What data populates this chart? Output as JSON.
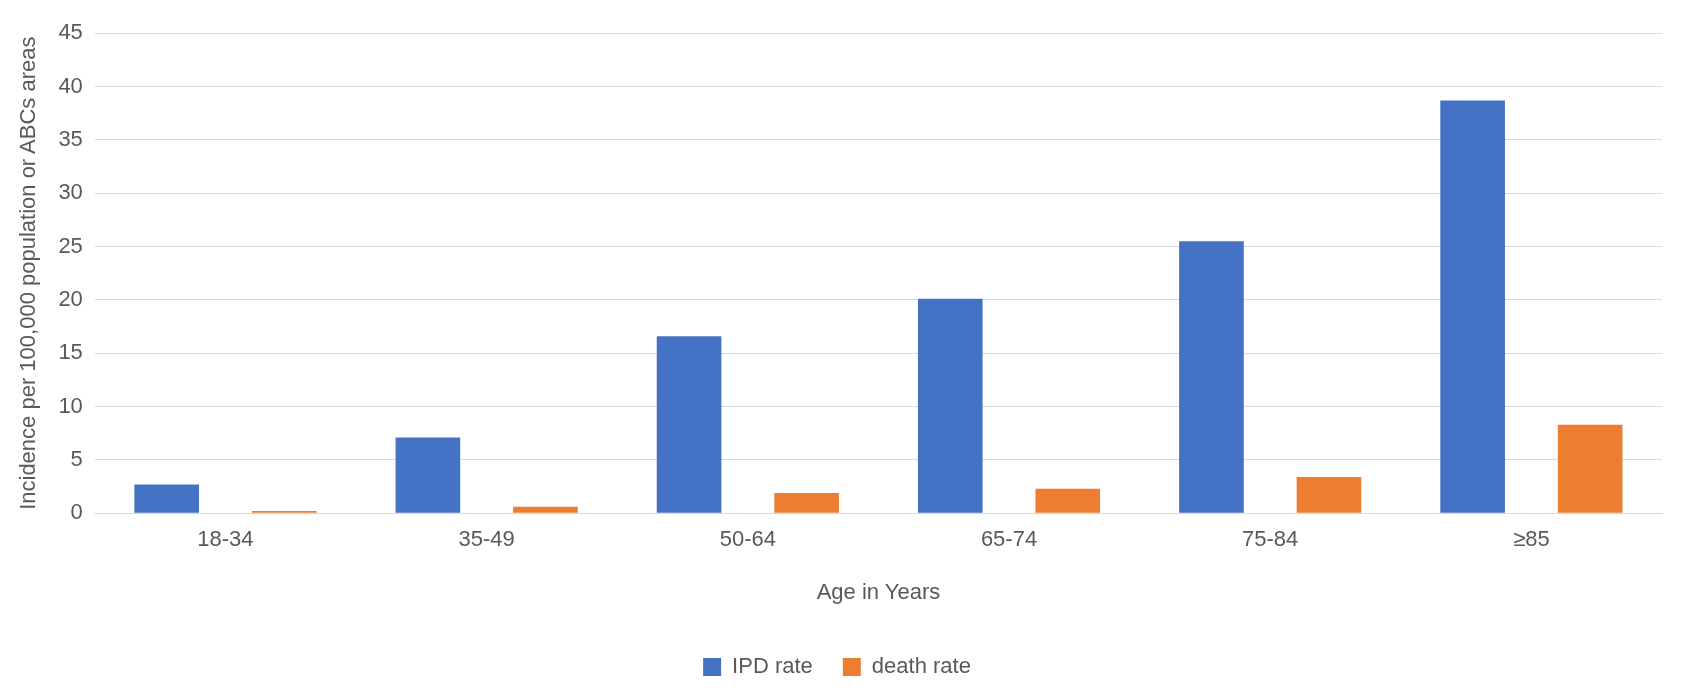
{
  "chart_data": {
    "type": "bar",
    "xlabel": "Age in Years",
    "ylabel": "Incidence per 100,000 population or ABCs areas",
    "categories": [
      "18-34",
      "35-49",
      "50-64",
      "65-74",
      "75-84",
      "≥85"
    ],
    "series": [
      {
        "name": "IPD rate",
        "color": "#4472c4",
        "values": [
          2.7,
          7.1,
          16.6,
          20.1,
          25.5,
          38.7
        ]
      },
      {
        "name": "death rate",
        "color": "#ed7d31",
        "values": [
          0.2,
          0.6,
          1.9,
          2.3,
          3.4,
          8.3
        ]
      }
    ],
    "ylim": [
      0,
      45
    ],
    "yticks": [
      0,
      5,
      10,
      15,
      20,
      25,
      30,
      35,
      40,
      45
    ],
    "grid": "y",
    "legend": "bottom"
  }
}
